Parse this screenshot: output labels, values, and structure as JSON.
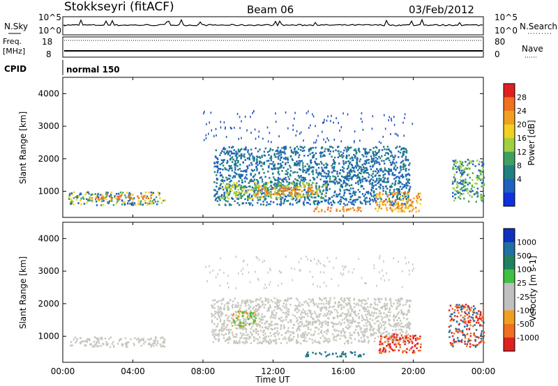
{
  "header": {
    "radar": "Stokkseyri (fitACF)",
    "beam": "Beam 06",
    "date": "03/Feb/2012"
  },
  "noise_panel": {
    "left_label": "N.Sky",
    "right_label": "N.Search",
    "ticks": [
      "10^5",
      "10^0"
    ]
  },
  "freq_panel": {
    "left_label_1": "Freq.",
    "left_label_2": "[MHz]",
    "left_ticks": [
      "18",
      "8"
    ],
    "right_label": "Nave",
    "right_ticks": [
      "80",
      "0"
    ]
  },
  "cpid": {
    "label": "CPID",
    "value": "normal 150"
  },
  "x_ticks": [
    "00:00",
    "04:00",
    "08:00",
    "12:00",
    "16:00",
    "20:00",
    "00:00"
  ],
  "x_title": "Time UT",
  "chart_data": [
    {
      "type": "heatmap",
      "name": "power",
      "ylabel": "Slant Range [km]",
      "y_ticks": [
        "1000",
        "2000",
        "3000",
        "4000"
      ],
      "ylim": [
        200,
        4500
      ],
      "xlim_hours": [
        0,
        24
      ],
      "colorbar_label": "Power [dB]",
      "colorbar_ticks": [
        "28",
        "24",
        "20",
        "16",
        "12",
        "8",
        "4"
      ],
      "colorbar_colors": [
        "#e02020",
        "#f07020",
        "#f0a020",
        "#f0d020",
        "#a0d040",
        "#40a060",
        "#208080",
        "#2060c0",
        "#1030e0"
      ],
      "regions": [
        {
          "t0": 0.3,
          "t1": 5.8,
          "r0": 600,
          "r1": 1000,
          "levels": [
            4,
            12,
            20
          ]
        },
        {
          "t0": 1.5,
          "t1": 5.2,
          "r0": 780,
          "r1": 920,
          "levels": [
            24,
            28
          ]
        },
        {
          "t0": 8.6,
          "t1": 19.8,
          "r0": 600,
          "r1": 2400,
          "levels": [
            4,
            8
          ]
        },
        {
          "t0": 9.0,
          "t1": 15.0,
          "r0": 800,
          "r1": 1300,
          "levels": [
            12,
            16,
            20
          ]
        },
        {
          "t0": 11.0,
          "t1": 14.5,
          "r0": 900,
          "r1": 1150,
          "levels": [
            24,
            28
          ]
        },
        {
          "t0": 17.8,
          "t1": 20.4,
          "r0": 400,
          "r1": 1000,
          "levels": [
            20,
            24,
            28
          ]
        },
        {
          "t0": 14.2,
          "t1": 17.0,
          "r0": 400,
          "r1": 550,
          "levels": [
            24,
            28
          ]
        },
        {
          "t0": 22.2,
          "t1": 24.0,
          "r0": 700,
          "r1": 2000,
          "levels": [
            4,
            12,
            16
          ]
        }
      ]
    },
    {
      "type": "heatmap",
      "name": "velocity",
      "ylabel": "Slant Range [km]",
      "y_ticks": [
        "1000",
        "2000",
        "3000",
        "4000"
      ],
      "ylim": [
        200,
        4500
      ],
      "xlim_hours": [
        0,
        24
      ],
      "colorbar_label": "Velocity [m s-1]",
      "colorbar_ticks": [
        "1000",
        "500",
        "100",
        "25",
        "-25",
        "-100",
        "-500",
        "-1000"
      ],
      "colorbar_colors": [
        "#1030c0",
        "#2070a0",
        "#208060",
        "#40c040",
        "#c0c0c0",
        "#c0c0c0",
        "#f0a020",
        "#f07020",
        "#e02020"
      ],
      "regions": [
        {
          "t0": 0.3,
          "t1": 5.8,
          "r0": 700,
          "r1": 1000,
          "levels": [
            0
          ]
        },
        {
          "t0": 8.4,
          "t1": 19.8,
          "r0": 800,
          "r1": 2200,
          "levels": [
            0
          ]
        },
        {
          "t0": 9.6,
          "t1": 11.0,
          "r0": 1300,
          "r1": 1800,
          "levels": [
            25,
            -25
          ]
        },
        {
          "t0": 18.0,
          "t1": 20.4,
          "r0": 500,
          "r1": 1100,
          "levels": [
            -100,
            -500
          ]
        },
        {
          "t0": 13.8,
          "t1": 17.2,
          "r0": 400,
          "r1": 550,
          "levels": [
            100,
            500
          ]
        },
        {
          "t0": 22.0,
          "t1": 24.0,
          "r0": 700,
          "r1": 2000,
          "levels": [
            -100,
            -500,
            500
          ]
        }
      ]
    }
  ]
}
